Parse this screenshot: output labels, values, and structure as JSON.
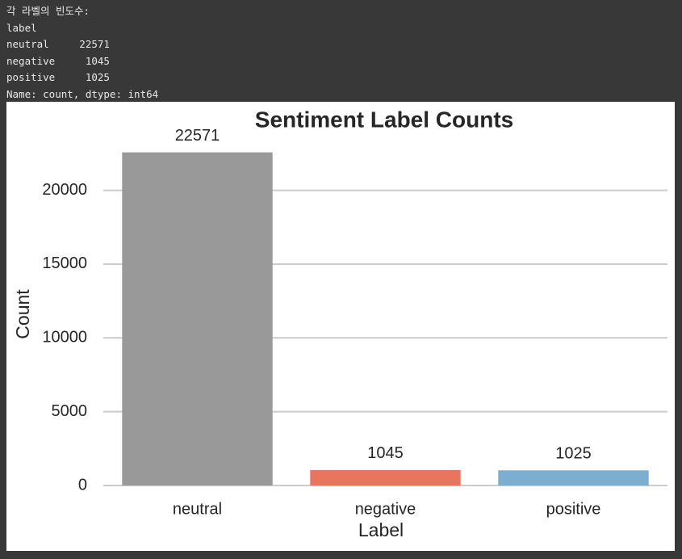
{
  "output": {
    "lines": [
      "각 라벨의 빈도수:",
      "label",
      "neutral     22571",
      "negative     1045",
      "positive     1025",
      "Name: count, dtype: int64"
    ]
  },
  "chart_data": {
    "type": "bar",
    "title": "Sentiment Label Counts",
    "x_label": "Label",
    "y_label": "Count",
    "categories": [
      "neutral",
      "negative",
      "positive"
    ],
    "values": [
      22571,
      1045,
      1025
    ],
    "colors": [
      "#999999",
      "#e8765f",
      "#7bafd2"
    ],
    "ylim": [
      0,
      23700
    ],
    "yticks": [
      0,
      5000,
      10000,
      15000,
      20000
    ],
    "grid": true
  }
}
